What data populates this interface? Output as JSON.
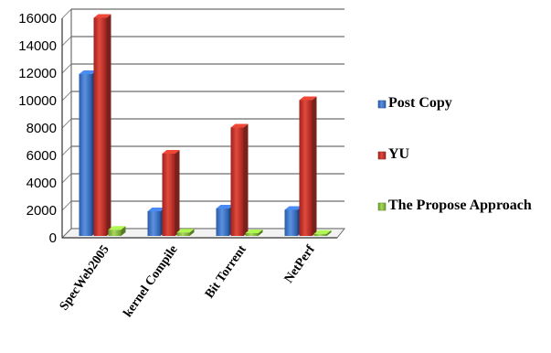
{
  "chart_data": {
    "type": "bar",
    "style": "3d-clustered-column",
    "categories": [
      "SpecWeb2005",
      "kernel Compile",
      "Bit Torrent",
      "NetPerf"
    ],
    "series": [
      {
        "name": "Post Copy",
        "values": [
          11800,
          1800,
          2000,
          1900
        ],
        "color": "#3a6fc4"
      },
      {
        "name": "YU",
        "values": [
          15900,
          6000,
          7900,
          9900
        ],
        "color": "#c0392b"
      },
      {
        "name": "The Propose Approach",
        "values": [
          450,
          250,
          200,
          150
        ],
        "color": "#8cc63f"
      }
    ],
    "ylim": [
      0,
      16000
    ],
    "yticks": [
      "0",
      "2000",
      "4000",
      "6000",
      "8000",
      "10000",
      "12000",
      "14000",
      "16000"
    ],
    "grid": true,
    "legend_position": "right"
  }
}
